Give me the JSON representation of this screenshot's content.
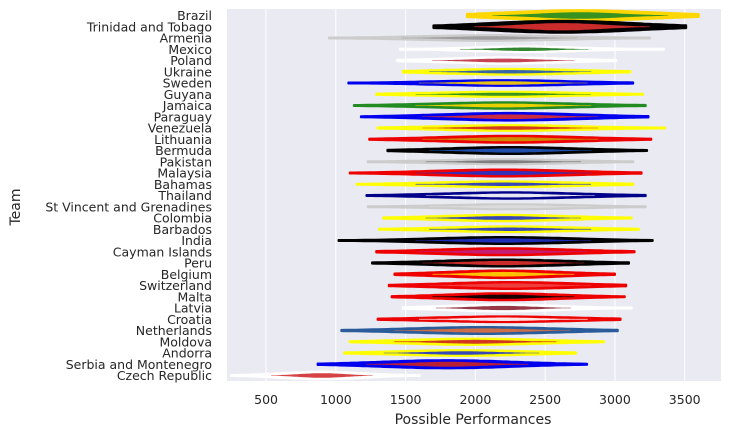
{
  "chart_data": {
    "type": "violin",
    "xlabel": "Possible Performances",
    "ylabel": "Team",
    "xlim": [
      220,
      3760
    ],
    "xticks": [
      500,
      1000,
      1500,
      2000,
      2500,
      3000,
      3500
    ],
    "grid": true,
    "background": "#eaeaf2",
    "teams": [
      {
        "name": "Brazil",
        "color": "#ffd700",
        "min": 1940,
        "max": 3600,
        "center": 2750,
        "spread": 520,
        "peak": 0.85,
        "inner": "#228b22"
      },
      {
        "name": "Trinidad and Tobago",
        "color": "#000000",
        "min": 1700,
        "max": 3510,
        "center": 2620,
        "spread": 520,
        "peak": 0.95,
        "inner": "#e03030"
      },
      {
        "name": "Armenia",
        "color": "#cccccc",
        "min": 950,
        "max": 3250,
        "center": 2100,
        "spread": 520,
        "peak": 0.45,
        "inner": "#999999"
      },
      {
        "name": "Mexico",
        "color": "#ffffff",
        "min": 1460,
        "max": 3350,
        "center": 2350,
        "spread": 380,
        "peak": 0.45,
        "inner": "#1a7a1a"
      },
      {
        "name": "Poland",
        "color": "#ffffff",
        "min": 1440,
        "max": 3010,
        "center": 2200,
        "spread": 420,
        "peak": 0.5,
        "inner": "#c03040"
      },
      {
        "name": "Ukraine",
        "color": "#ffff00",
        "min": 1480,
        "max": 3110,
        "center": 2250,
        "spread": 480,
        "peak": 0.45,
        "inner": "#2255bb"
      },
      {
        "name": "Sweden",
        "color": "#0000ee",
        "min": 1090,
        "max": 3130,
        "center": 2200,
        "spread": 500,
        "peak": 0.45,
        "inner": "#ffd700"
      },
      {
        "name": "Guyana",
        "color": "#ffff00",
        "min": 1290,
        "max": 3200,
        "center": 2200,
        "spread": 520,
        "peak": 0.4,
        "inner": "#228b22"
      },
      {
        "name": "Jamaica",
        "color": "#228b22",
        "min": 1130,
        "max": 3220,
        "center": 2200,
        "spread": 520,
        "peak": 0.5,
        "inner": "#ffd700"
      },
      {
        "name": "Paraguay",
        "color": "#0000ee",
        "min": 1180,
        "max": 3240,
        "center": 2250,
        "spread": 520,
        "peak": 0.6,
        "inner": "#e03030"
      },
      {
        "name": "Venezuela",
        "color": "#ffff00",
        "min": 1300,
        "max": 3360,
        "center": 2250,
        "spread": 520,
        "peak": 0.45,
        "inner": "#cc2222"
      },
      {
        "name": "Lithuania",
        "color": "#ee0000",
        "min": 1240,
        "max": 3260,
        "center": 2250,
        "spread": 520,
        "peak": 0.55,
        "inner": "#cc9900"
      },
      {
        "name": "Bermuda",
        "color": "#000000",
        "min": 1370,
        "max": 3230,
        "center": 2250,
        "spread": 480,
        "peak": 0.55,
        "inner": "#2255bb"
      },
      {
        "name": "Pakistan",
        "color": "#cccccc",
        "min": 1230,
        "max": 3130,
        "center": 2200,
        "spread": 460,
        "peak": 0.4,
        "inner": "#777777"
      },
      {
        "name": "Malaysia",
        "color": "#ee0000",
        "min": 1100,
        "max": 3190,
        "center": 2200,
        "spread": 520,
        "peak": 0.55,
        "inner": "#2233cc"
      },
      {
        "name": "Bahamas",
        "color": "#ffff00",
        "min": 1150,
        "max": 3130,
        "center": 2200,
        "spread": 520,
        "peak": 0.45,
        "inner": "#2233cc"
      },
      {
        "name": "Thailand",
        "color": "#00008b",
        "min": 1220,
        "max": 3220,
        "center": 2250,
        "spread": 500,
        "peak": 0.5,
        "inner": "#ffffff"
      },
      {
        "name": "St Vincent and Grenadines",
        "color": "#cccccc",
        "min": 1230,
        "max": 3220,
        "center": 2250,
        "spread": 480,
        "peak": 0.4,
        "inner": "#dddddd"
      },
      {
        "name": "Colombia",
        "color": "#ffff00",
        "min": 1340,
        "max": 3120,
        "center": 2200,
        "spread": 460,
        "peak": 0.5,
        "inner": "#2233cc"
      },
      {
        "name": "Barbados",
        "color": "#ffff00",
        "min": 1310,
        "max": 3170,
        "center": 2250,
        "spread": 480,
        "peak": 0.45,
        "inner": "#2233cc"
      },
      {
        "name": "India",
        "color": "#000000",
        "min": 1020,
        "max": 3270,
        "center": 2200,
        "spread": 520,
        "peak": 0.55,
        "inner": "#2233cc"
      },
      {
        "name": "Cayman Islands",
        "color": "#ee0000",
        "min": 1290,
        "max": 3140,
        "center": 2200,
        "spread": 500,
        "peak": 0.55,
        "inner": "#c02080"
      },
      {
        "name": "Peru",
        "color": "#000000",
        "min": 1260,
        "max": 3100,
        "center": 2200,
        "spread": 480,
        "peak": 0.55,
        "inner": "#e03030"
      },
      {
        "name": "Belgium",
        "color": "#ee0000",
        "min": 1420,
        "max": 3000,
        "center": 2200,
        "spread": 420,
        "peak": 0.6,
        "inner": "#ffd700"
      },
      {
        "name": "Switzerland",
        "color": "#ee0000",
        "min": 1380,
        "max": 3080,
        "center": 2250,
        "spread": 480,
        "peak": 0.55,
        "inner": "#ee4444"
      },
      {
        "name": "Malta",
        "color": "#ee0000",
        "min": 1400,
        "max": 3070,
        "center": 2200,
        "spread": 420,
        "peak": 0.55,
        "inner": "#000000"
      },
      {
        "name": "Latvia",
        "color": "#ffffff",
        "min": 1480,
        "max": 3120,
        "center": 2200,
        "spread": 400,
        "peak": 0.55,
        "inner": "#8b2232"
      },
      {
        "name": "Croatia",
        "color": "#ee0000",
        "min": 1300,
        "max": 3040,
        "center": 2200,
        "spread": 500,
        "peak": 0.45,
        "inner": "#ffffff"
      },
      {
        "name": "Netherlands",
        "color": "#2a5c9a",
        "min": 1040,
        "max": 3020,
        "center": 2050,
        "spread": 520,
        "peak": 0.55,
        "inner": "#e07040"
      },
      {
        "name": "Moldova",
        "color": "#ffff00",
        "min": 1100,
        "max": 2920,
        "center": 2000,
        "spread": 480,
        "peak": 0.5,
        "inner": "#cc2222"
      },
      {
        "name": "Andorra",
        "color": "#ffff00",
        "min": 1060,
        "max": 2720,
        "center": 1900,
        "spread": 460,
        "peak": 0.45,
        "inner": "#2233cc"
      },
      {
        "name": "Serbia and Montenegro",
        "color": "#0000ee",
        "min": 870,
        "max": 2800,
        "center": 1800,
        "spread": 480,
        "peak": 0.65,
        "inner": "#cc2222"
      },
      {
        "name": "Czech Republic",
        "color": "#ffffff",
        "min": 250,
        "max": 1600,
        "center": 900,
        "spread": 300,
        "peak": 0.6,
        "inner": "#d03030"
      }
    ]
  }
}
